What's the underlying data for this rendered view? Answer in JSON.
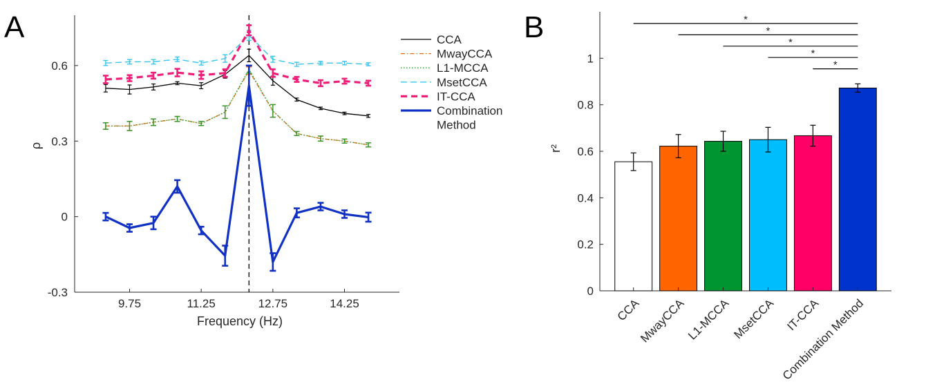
{
  "panels": {
    "a": {
      "letter": "A"
    },
    "b": {
      "letter": "B"
    }
  },
  "chart_data": [
    {
      "type": "line",
      "title": "",
      "xlabel": "Frequency (Hz)",
      "ylabel": "ρ",
      "xlim": [
        8.6,
        15.4
      ],
      "ylim": [
        -0.3,
        0.8
      ],
      "xticks": [
        9.75,
        11.25,
        12.75,
        14.25
      ],
      "xtick_labels": [
        "9.75",
        "11.25",
        "12.75",
        "14.25"
      ],
      "yticks": [
        -0.3,
        0,
        0.3,
        0.6
      ],
      "ytick_labels": [
        "-0.3",
        "0",
        "0.3",
        "0.6"
      ],
      "grid": false,
      "legend_position": "right",
      "reference_line": {
        "x": 12.25,
        "style": "dashed"
      },
      "x": [
        9.25,
        9.75,
        10.25,
        10.75,
        11.25,
        11.75,
        12.25,
        12.75,
        13.25,
        13.75,
        14.25,
        14.75
      ],
      "series": [
        {
          "name": "CCA",
          "color": "#000000",
          "style": "solid",
          "values": [
            0.51,
            0.505,
            0.515,
            0.53,
            0.52,
            0.565,
            0.64,
            0.54,
            0.465,
            0.43,
            0.41,
            0.4
          ],
          "errors": [
            0.015,
            0.018,
            0.012,
            0.006,
            0.012,
            0.015,
            0.025,
            0.018,
            0.006,
            0.005,
            0.005,
            0.006
          ]
        },
        {
          "name": "MwayCCA",
          "color": "#ed6a0c",
          "style": "dashdot",
          "values": [
            0.36,
            0.36,
            0.375,
            0.388,
            0.37,
            0.415,
            0.58,
            0.42,
            0.33,
            0.31,
            0.3,
            0.285
          ],
          "errors": [
            0.013,
            0.018,
            0.013,
            0.01,
            0.008,
            0.025,
            0.015,
            0.025,
            0.008,
            0.01,
            0.008,
            0.008
          ]
        },
        {
          "name": "L1-MCCA",
          "color": "#2e9a2e",
          "style": "dotted",
          "values": [
            0.36,
            0.36,
            0.375,
            0.388,
            0.37,
            0.415,
            0.585,
            0.42,
            0.33,
            0.31,
            0.3,
            0.285
          ],
          "errors": [
            0.013,
            0.018,
            0.013,
            0.01,
            0.008,
            0.025,
            0.015,
            0.025,
            0.008,
            0.01,
            0.008,
            0.008
          ]
        },
        {
          "name": "MsetCCA",
          "color": "#37c4ef",
          "style": "dashed",
          "values": [
            0.61,
            0.615,
            0.615,
            0.625,
            0.61,
            0.628,
            0.72,
            0.625,
            0.605,
            0.61,
            0.61,
            0.605
          ],
          "errors": [
            0.01,
            0.009,
            0.009,
            0.009,
            0.008,
            0.015,
            0.02,
            0.012,
            0.008,
            0.007,
            0.007,
            0.006
          ]
        },
        {
          "name": "IT-CCA",
          "color": "#ef1f79",
          "style": "dashed-thick",
          "values": [
            0.545,
            0.55,
            0.56,
            0.572,
            0.562,
            0.57,
            0.74,
            0.57,
            0.545,
            0.53,
            0.538,
            0.53
          ],
          "errors": [
            0.015,
            0.012,
            0.012,
            0.015,
            0.015,
            0.015,
            0.02,
            0.015,
            0.01,
            0.012,
            0.01,
            0.01
          ]
        },
        {
          "name": "Combination\nMethod",
          "color": "#1131c4",
          "style": "solid-thick",
          "values": [
            0.0,
            -0.045,
            -0.025,
            0.12,
            -0.055,
            -0.155,
            0.52,
            -0.18,
            0.015,
            0.04,
            0.01,
            -0.002
          ],
          "errors": [
            0.015,
            0.015,
            0.025,
            0.025,
            0.015,
            0.04,
            0.08,
            0.035,
            0.018,
            0.015,
            0.015,
            0.018
          ]
        }
      ]
    },
    {
      "type": "bar",
      "title": "",
      "xlabel": "",
      "ylabel": "r²",
      "ylim": [
        0,
        1.2
      ],
      "yticks": [
        0,
        0.2,
        0.4,
        0.6,
        0.8,
        1
      ],
      "ytick_labels": [
        "0",
        "0.2",
        "0.4",
        "0.6",
        "0.8",
        "1"
      ],
      "grid": false,
      "categories": [
        "CCA",
        "MwayCCA",
        "L1-MCCA",
        "MsetCCA",
        "IT-CCA",
        "Combination Method"
      ],
      "values": [
        0.555,
        0.622,
        0.643,
        0.65,
        0.667,
        0.872
      ],
      "errors": [
        0.038,
        0.05,
        0.043,
        0.053,
        0.045,
        0.018
      ],
      "colors": [
        "#ffffff",
        "#fe6400",
        "#009530",
        "#00befe",
        "#fe0066",
        "#0033cc"
      ],
      "significance": [
        {
          "from": "CCA",
          "to": "Combination Method",
          "label": "*"
        },
        {
          "from": "MwayCCA",
          "to": "Combination Method",
          "label": "*"
        },
        {
          "from": "L1-MCCA",
          "to": "Combination Method",
          "label": "*"
        },
        {
          "from": "MsetCCA",
          "to": "Combination Method",
          "label": "*"
        },
        {
          "from": "IT-CCA",
          "to": "Combination Method",
          "label": "*"
        }
      ]
    }
  ]
}
